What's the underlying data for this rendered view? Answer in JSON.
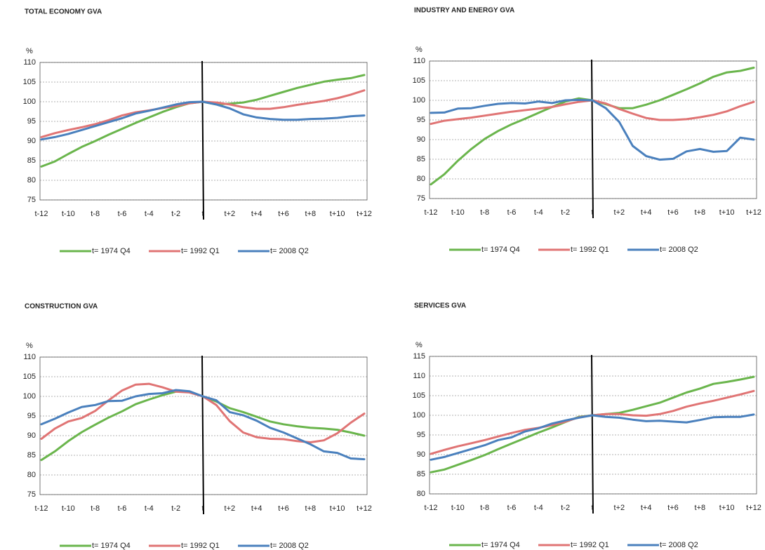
{
  "chart_data": [
    {
      "type": "line",
      "title": "TOTAL ECONOMY GVA",
      "y_label": "%",
      "categories": [
        "t-12",
        null,
        "t-10",
        null,
        "t-8",
        null,
        "t-6",
        null,
        "t-4",
        null,
        "t-2",
        null,
        "t",
        null,
        "t+2",
        null,
        "t+4",
        null,
        "t+6",
        null,
        "t+8",
        null,
        "t+10",
        null,
        "t+12"
      ],
      "series": [
        {
          "name": "t= 1974 Q4",
          "color": "#6ab54c",
          "values": [
            83.5,
            84.8,
            86.7,
            88.5,
            90.0,
            91.6,
            93.1,
            94.6,
            96.0,
            97.4,
            98.6,
            99.6,
            100,
            99.3,
            99.5,
            99.8,
            100.5,
            101.5,
            102.5,
            103.5,
            104.3,
            105.1,
            105.6,
            106.0,
            106.8
          ]
        },
        {
          "name": "t= 1992 Q1",
          "color": "#e07474",
          "values": [
            91.0,
            92.0,
            92.8,
            93.5,
            94.3,
            95.3,
            96.5,
            97.3,
            97.8,
            98.4,
            98.9,
            99.6,
            100,
            99.8,
            99.3,
            98.6,
            98.2,
            98.2,
            98.6,
            99.2,
            99.7,
            100.2,
            100.9,
            101.8,
            102.9
          ]
        },
        {
          "name": "t= 2008 Q2",
          "color": "#4a80bd",
          "values": [
            90.4,
            91.0,
            91.8,
            92.8,
            93.8,
            94.8,
            95.8,
            97.0,
            97.7,
            98.5,
            99.3,
            99.9,
            100,
            99.3,
            98.3,
            96.8,
            96.0,
            95.6,
            95.4,
            95.4,
            95.6,
            95.7,
            95.9,
            96.3,
            96.5
          ]
        }
      ],
      "ylim": [
        75,
        110
      ],
      "yticks": [
        75,
        80,
        85,
        90,
        95,
        100,
        105,
        110
      ],
      "grid": true
    },
    {
      "type": "line",
      "title": "INDUSTRY AND ENERGY GVA",
      "y_label": "%",
      "categories": [
        "t-12",
        null,
        "t-10",
        null,
        "t-8",
        null,
        "t-6",
        null,
        "t-4",
        null,
        "t-2",
        null,
        "t",
        null,
        "t+2",
        null,
        "t+4",
        null,
        "t+6",
        null,
        "t+8",
        null,
        "t+10",
        null,
        "t+12"
      ],
      "series": [
        {
          "name": "t= 1974 Q4",
          "color": "#6ab54c",
          "values": [
            78.6,
            81.2,
            84.6,
            87.6,
            90.2,
            92.2,
            93.9,
            95.3,
            96.8,
            98.3,
            99.7,
            100.5,
            100,
            99.0,
            98.0,
            98.0,
            98.9,
            100.0,
            101.4,
            102.8,
            104.3,
            106.0,
            107.1,
            107.5,
            108.3
          ]
        },
        {
          "name": "t= 1992 Q1",
          "color": "#e07474",
          "values": [
            94.0,
            94.8,
            95.2,
            95.6,
            96.1,
            96.6,
            97.1,
            97.5,
            97.9,
            98.3,
            99.0,
            99.6,
            100,
            99.2,
            97.8,
            96.6,
            95.5,
            95.0,
            95.0,
            95.2,
            95.7,
            96.3,
            97.2,
            98.5,
            99.6
          ]
        },
        {
          "name": "t= 2008 Q2",
          "color": "#4a80bd",
          "values": [
            96.8,
            96.9,
            97.9,
            98.0,
            98.6,
            99.1,
            99.3,
            99.2,
            99.7,
            99.3,
            100.0,
            100.1,
            100,
            98.0,
            94.5,
            88.4,
            85.8,
            84.9,
            85.1,
            87.0,
            87.6,
            86.9,
            87.1,
            90.5,
            90.0
          ]
        }
      ],
      "ylim": [
        75,
        110
      ],
      "yticks": [
        75,
        80,
        85,
        90,
        95,
        100,
        105,
        110
      ],
      "grid": true
    },
    {
      "type": "line",
      "title": "CONSTRUCTION GVA",
      "y_label": "%",
      "categories": [
        "t-12",
        null,
        "t-10",
        null,
        "t-8",
        null,
        "t-6",
        null,
        "t-4",
        null,
        "t-2",
        null,
        "t",
        null,
        "t+2",
        null,
        "t+4",
        null,
        "t+6",
        null,
        "t+8",
        null,
        "t+10",
        null,
        "t+12"
      ],
      "series": [
        {
          "name": "t= 1974 Q4",
          "color": "#6ab54c",
          "values": [
            83.8,
            86.0,
            88.6,
            90.9,
            92.8,
            94.6,
            96.2,
            98.0,
            99.2,
            100.3,
            101.2,
            101.2,
            100,
            98.7,
            97.0,
            96.0,
            94.8,
            93.6,
            92.9,
            92.4,
            92.0,
            91.8,
            91.5,
            90.8,
            90.0
          ]
        },
        {
          "name": "t= 1992 Q1",
          "color": "#e07474",
          "values": [
            89.2,
            91.8,
            93.6,
            94.5,
            96.3,
            99.0,
            101.5,
            103.0,
            103.2,
            102.3,
            101.2,
            101.0,
            100,
            97.8,
            93.7,
            90.8,
            89.6,
            89.2,
            89.1,
            88.6,
            88.3,
            88.8,
            90.6,
            93.3,
            95.6
          ]
        },
        {
          "name": "t= 2008 Q2",
          "color": "#4a80bd",
          "values": [
            92.9,
            94.3,
            95.9,
            97.3,
            97.8,
            98.8,
            98.9,
            100.0,
            100.6,
            100.8,
            101.6,
            101.3,
            100,
            99.0,
            96.0,
            95.2,
            93.8,
            92.0,
            90.8,
            89.3,
            87.8,
            86.0,
            85.6,
            84.2,
            84.0
          ]
        }
      ],
      "ylim": [
        75,
        110
      ],
      "yticks": [
        75,
        80,
        85,
        90,
        95,
        100,
        105,
        110
      ],
      "grid": true
    },
    {
      "type": "line",
      "title": "SERVICES GVA",
      "y_label": "%",
      "categories": [
        "t-12",
        null,
        "t-10",
        null,
        "t-8",
        null,
        "t-6",
        null,
        "t-4",
        null,
        "t-2",
        null,
        "t",
        null,
        "t+2",
        null,
        "t+4",
        null,
        "t+6",
        null,
        "t+8",
        null,
        "t+10",
        null,
        "t+12"
      ],
      "series": [
        {
          "name": "t= 1974 Q4",
          "color": "#6ab54c",
          "values": [
            85.5,
            86.2,
            87.4,
            88.6,
            89.9,
            91.4,
            92.8,
            94.2,
            95.6,
            96.9,
            98.3,
            99.6,
            100,
            100.3,
            100.6,
            101.4,
            102.3,
            103.2,
            104.5,
            105.8,
            106.8,
            108.0,
            108.5,
            109.1,
            109.8
          ]
        },
        {
          "name": "t= 1992 Q1",
          "color": "#e07474",
          "values": [
            90.2,
            91.2,
            92.1,
            92.9,
            93.7,
            94.6,
            95.5,
            96.3,
            96.8,
            97.5,
            98.4,
            99.5,
            100,
            100.3,
            100.3,
            100.0,
            99.9,
            100.3,
            101.1,
            102.2,
            103.0,
            103.7,
            104.5,
            105.3,
            106.2
          ]
        },
        {
          "name": "t= 2008 Q2",
          "color": "#4a80bd",
          "values": [
            88.7,
            89.4,
            90.4,
            91.4,
            92.4,
            93.7,
            94.4,
            95.9,
            96.7,
            97.9,
            98.7,
            99.4,
            100,
            99.6,
            99.4,
            98.9,
            98.5,
            98.6,
            98.4,
            98.2,
            98.8,
            99.5,
            99.6,
            99.6,
            100.2
          ]
        }
      ],
      "ylim": [
        80,
        115
      ],
      "yticks": [
        80,
        85,
        90,
        95,
        100,
        105,
        110,
        115
      ],
      "grid": true
    }
  ]
}
